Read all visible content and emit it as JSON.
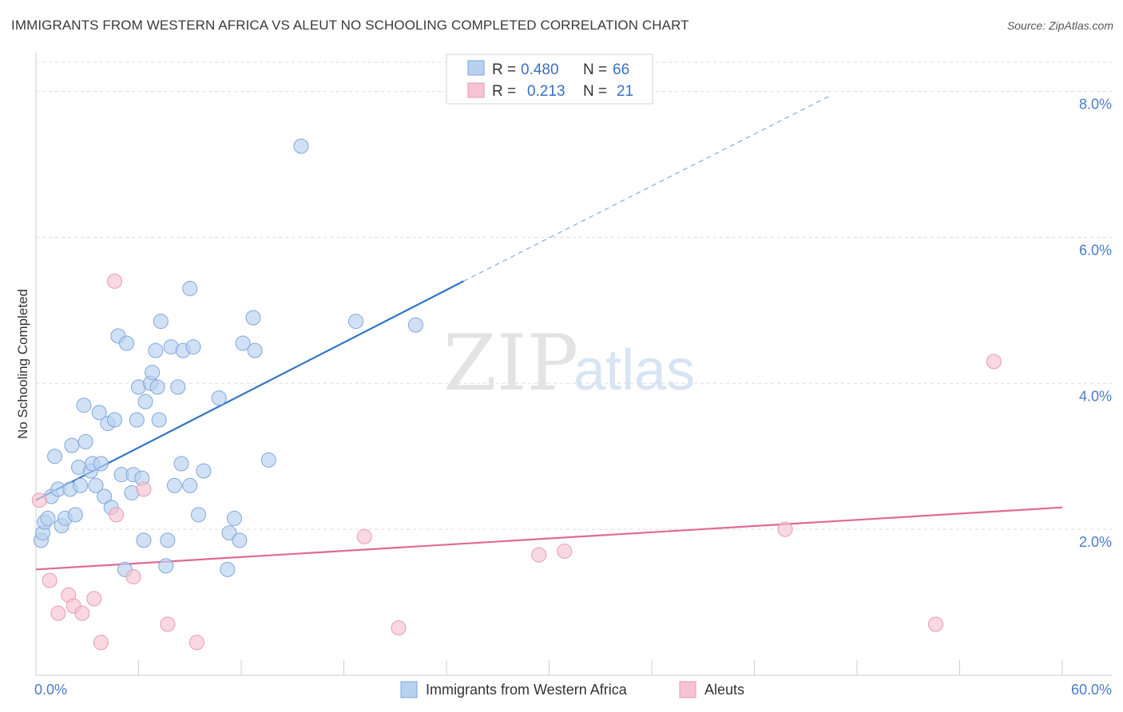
{
  "header": {
    "title": "IMMIGRANTS FROM WESTERN AFRICA VS ALEUT NO SCHOOLING COMPLETED CORRELATION CHART",
    "source": "Source: ZipAtlas.com"
  },
  "watermark": {
    "zip": "ZIP",
    "atlas": "atlas"
  },
  "colors": {
    "blue_fill": "#b8d1f0",
    "blue_stroke": "#7ea6dc",
    "blue_line": "#2f74c8",
    "pink_fill": "#f7c3d3",
    "pink_stroke": "#e79ab3",
    "pink_line": "#e06a92",
    "grid": "#dcdcdc",
    "tick_text": "#4a7cc7"
  },
  "legend": {
    "rows": [
      {
        "r_label": "R =",
        "r_value": "0.480",
        "n_label": "N =",
        "n_value": "66"
      },
      {
        "r_label": "R =",
        "r_value": "0.213",
        "n_label": "N =",
        "n_value": "21"
      }
    ],
    "bottom": [
      "Immigrants from Western Africa",
      "Aleuts"
    ]
  },
  "chart_data": {
    "type": "scatter",
    "title": "IMMIGRANTS FROM WESTERN AFRICA VS ALEUT NO SCHOOLING COMPLETED CORRELATION CHART",
    "xlabel": "",
    "ylabel": "No Schooling Completed",
    "xlim": [
      0,
      60
    ],
    "ylim": [
      0,
      8.4
    ],
    "x_tick_labels": [
      "0.0%",
      "60.0%"
    ],
    "y_tick_labels": [
      "2.0%",
      "4.0%",
      "6.0%",
      "8.0%"
    ],
    "y_ticks": [
      2,
      4,
      6,
      8
    ],
    "grid": true,
    "legend_position": "top-center",
    "series": [
      {
        "name": "Immigrants from Western Africa",
        "R": 0.48,
        "N": 66,
        "trend": {
          "x0": 0,
          "y0": 2.4,
          "x1": 25,
          "y1": 5.4,
          "dash_to_x": 46.5,
          "dash_to_y": 7.95
        },
        "points": [
          [
            0.3,
            1.85
          ],
          [
            0.4,
            1.95
          ],
          [
            0.5,
            2.1
          ],
          [
            0.7,
            2.15
          ],
          [
            0.9,
            2.45
          ],
          [
            1.1,
            3.0
          ],
          [
            1.3,
            2.55
          ],
          [
            1.5,
            2.05
          ],
          [
            1.7,
            2.15
          ],
          [
            2.0,
            2.55
          ],
          [
            2.1,
            3.15
          ],
          [
            2.3,
            2.2
          ],
          [
            2.5,
            2.85
          ],
          [
            2.6,
            2.6
          ],
          [
            2.8,
            3.7
          ],
          [
            2.9,
            3.2
          ],
          [
            3.2,
            2.8
          ],
          [
            3.3,
            2.9
          ],
          [
            3.5,
            2.6
          ],
          [
            3.7,
            3.6
          ],
          [
            3.8,
            2.9
          ],
          [
            4.0,
            2.45
          ],
          [
            4.2,
            3.45
          ],
          [
            4.4,
            2.3
          ],
          [
            4.6,
            3.5
          ],
          [
            4.8,
            4.65
          ],
          [
            5.0,
            2.75
          ],
          [
            5.2,
            1.45
          ],
          [
            5.3,
            4.55
          ],
          [
            5.6,
            2.5
          ],
          [
            5.7,
            2.75
          ],
          [
            5.9,
            3.5
          ],
          [
            6.0,
            3.95
          ],
          [
            6.2,
            2.7
          ],
          [
            6.3,
            1.85
          ],
          [
            6.4,
            3.75
          ],
          [
            6.7,
            4.0
          ],
          [
            6.8,
            4.15
          ],
          [
            7.0,
            4.45
          ],
          [
            7.1,
            3.95
          ],
          [
            7.2,
            3.5
          ],
          [
            7.3,
            4.85
          ],
          [
            7.6,
            1.5
          ],
          [
            7.7,
            1.85
          ],
          [
            7.9,
            4.5
          ],
          [
            8.1,
            2.6
          ],
          [
            8.3,
            3.95
          ],
          [
            8.5,
            2.9
          ],
          [
            8.6,
            4.45
          ],
          [
            9.0,
            5.3
          ],
          [
            9.2,
            4.5
          ],
          [
            9.5,
            2.2
          ],
          [
            9.8,
            2.8
          ],
          [
            10.7,
            3.8
          ],
          [
            11.2,
            1.45
          ],
          [
            11.3,
            1.95
          ],
          [
            11.6,
            2.15
          ],
          [
            11.9,
            1.85
          ],
          [
            12.1,
            4.55
          ],
          [
            12.7,
            4.9
          ],
          [
            12.8,
            4.45
          ],
          [
            13.6,
            2.95
          ],
          [
            15.5,
            7.25
          ],
          [
            18.7,
            4.85
          ],
          [
            22.2,
            4.8
          ],
          [
            9.0,
            2.6
          ]
        ]
      },
      {
        "name": "Aleuts",
        "R": 0.213,
        "N": 21,
        "trend": {
          "x0": 0,
          "y0": 1.45,
          "x1": 60,
          "y1": 2.3
        },
        "points": [
          [
            0.2,
            2.4
          ],
          [
            0.8,
            1.3
          ],
          [
            1.3,
            0.85
          ],
          [
            1.9,
            1.1
          ],
          [
            2.2,
            0.95
          ],
          [
            2.7,
            0.85
          ],
          [
            3.4,
            1.05
          ],
          [
            3.8,
            0.45
          ],
          [
            4.6,
            5.4
          ],
          [
            4.7,
            2.2
          ],
          [
            5.7,
            1.35
          ],
          [
            6.3,
            2.55
          ],
          [
            7.7,
            0.7
          ],
          [
            9.4,
            0.45
          ],
          [
            19.2,
            1.9
          ],
          [
            21.2,
            0.65
          ],
          [
            29.4,
            1.65
          ],
          [
            30.9,
            1.7
          ],
          [
            43.8,
            2.0
          ],
          [
            52.6,
            0.7
          ],
          [
            56.0,
            4.3
          ]
        ]
      }
    ]
  }
}
